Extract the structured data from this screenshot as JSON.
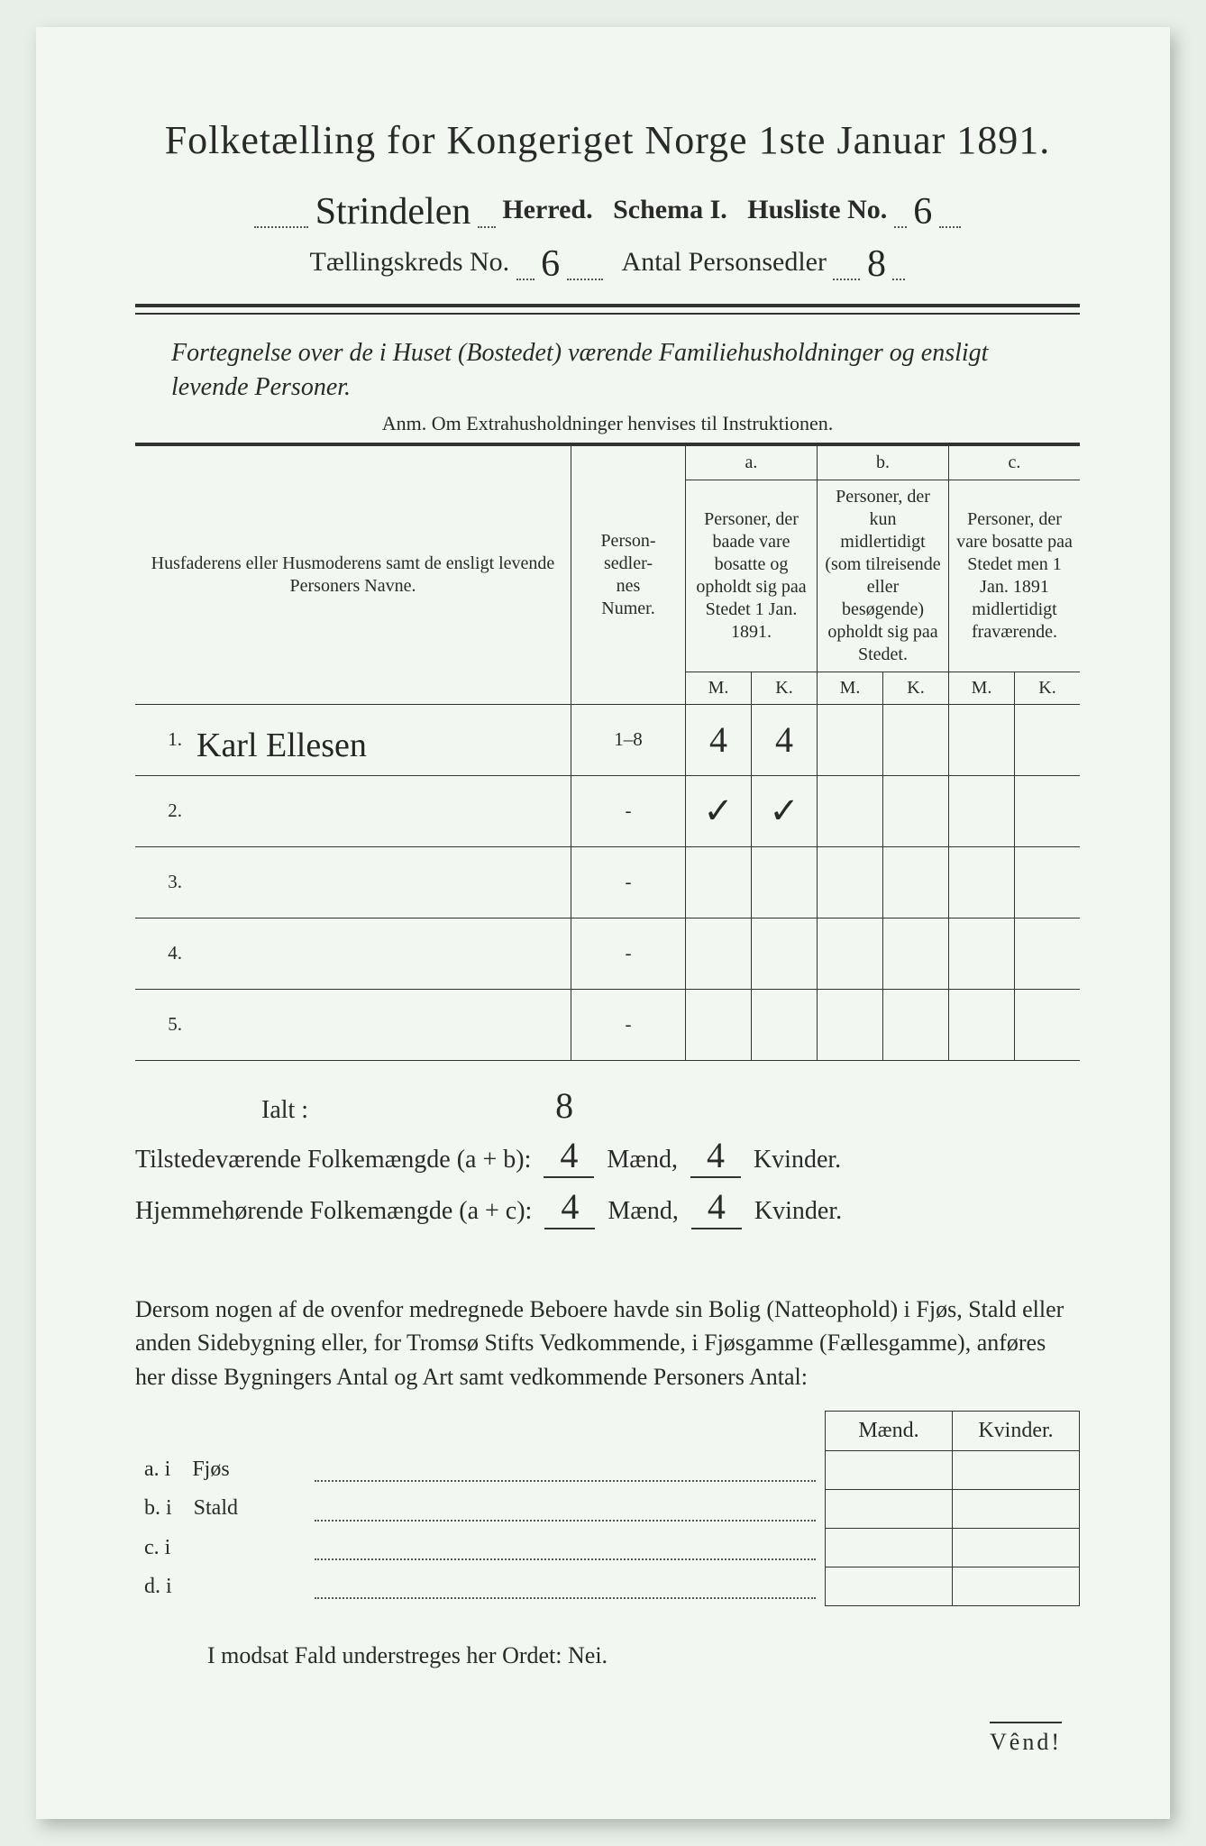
{
  "colors": {
    "paper": "#f2f7f1",
    "bg": "#e8efe9",
    "ink": "#2a2a2a",
    "rule": "#333333"
  },
  "typography": {
    "title_pt": 44,
    "body_pt": 26,
    "table_pt": 21,
    "hand_pt": 42
  },
  "header": {
    "title": "Folketælling for Kongeriget Norge 1ste Januar 1891.",
    "herred_value": "Strindelen",
    "herred_label": "Herred.",
    "schema_label": "Schema I.",
    "husliste_label": "Husliste No.",
    "husliste_no": "6",
    "kreds_label": "Tællingskreds No.",
    "kreds_no": "6",
    "antal_label": "Antal Personsedler",
    "antal_value": "8"
  },
  "subtitle": "Fortegnelse over de i Huset (Bostedet) værende Familiehusholdninger og ensligt levende Personer.",
  "anm": "Anm.  Om Extrahusholdninger henvises til Instruktionen.",
  "table": {
    "col_name": "Husfaderens eller Husmoderens samt de ensligt levende Personers Navne.",
    "col_pers": "Person-\nsedler-\nnes\nNumer.",
    "col_a_label": "a.",
    "col_a": "Personer, der baade vare bosatte og opholdt sig paa Stedet 1 Jan. 1891.",
    "col_b_label": "b.",
    "col_b": "Personer, der kun midlertidigt (som tilreisende eller besøgende) opholdt sig paa Stedet.",
    "col_c_label": "c.",
    "col_c": "Personer, der vare bosatte paa Stedet men 1 Jan. 1891 midlertidigt fraværende.",
    "mk_M": "M.",
    "mk_K": "K.",
    "rows": [
      {
        "n": "1.",
        "name": "Karl Ellesen",
        "pers": "1–8",
        "aM": "4",
        "aK": "4",
        "bM": "",
        "bK": "",
        "cM": "",
        "cK": ""
      },
      {
        "n": "2.",
        "name": "",
        "pers": "-",
        "aM": "✓",
        "aK": "✓",
        "bM": "",
        "bK": "",
        "cM": "",
        "cK": ""
      },
      {
        "n": "3.",
        "name": "",
        "pers": "-",
        "aM": "",
        "aK": "",
        "bM": "",
        "bK": "",
        "cM": "",
        "cK": ""
      },
      {
        "n": "4.",
        "name": "",
        "pers": "-",
        "aM": "",
        "aK": "",
        "bM": "",
        "bK": "",
        "cM": "",
        "cK": ""
      },
      {
        "n": "5.",
        "name": "",
        "pers": "-",
        "aM": "",
        "aK": "",
        "bM": "",
        "bK": "",
        "cM": "",
        "cK": ""
      }
    ]
  },
  "totals": {
    "ialt_label": "Ialt :",
    "ialt_value": "8",
    "tilstede_label": "Tilstedeværende Folkemængde (a + b):",
    "tilstede_M": "4",
    "tilstede_K": "4",
    "hjemme_label": "Hjemmehørende Folkemængde (a + c):",
    "hjemme_M": "4",
    "hjemme_K": "4",
    "maend": "Mænd,",
    "kvinder": "Kvinder."
  },
  "para": "Dersom nogen af de ovenfor medregnede Beboere havde sin Bolig (Natteophold) i Fjøs, Stald eller anden Sidebygning eller, for Tromsø Stifts Vedkommende, i Fjøsgamme (Fællesgamme), anføres her disse Bygningers Antal og Art samt vedkommende Personers Antal:",
  "fjos": {
    "hd_M": "Mænd.",
    "hd_K": "Kvinder.",
    "rows": [
      {
        "k": "a.  i",
        "lab": "Fjøs"
      },
      {
        "k": "b.  i",
        "lab": "Stald"
      },
      {
        "k": "c.  i",
        "lab": ""
      },
      {
        "k": "d.  i",
        "lab": ""
      }
    ]
  },
  "nei": "I modsat Fald understreges her Ordet:  Nei.",
  "vend": "Vênd!"
}
